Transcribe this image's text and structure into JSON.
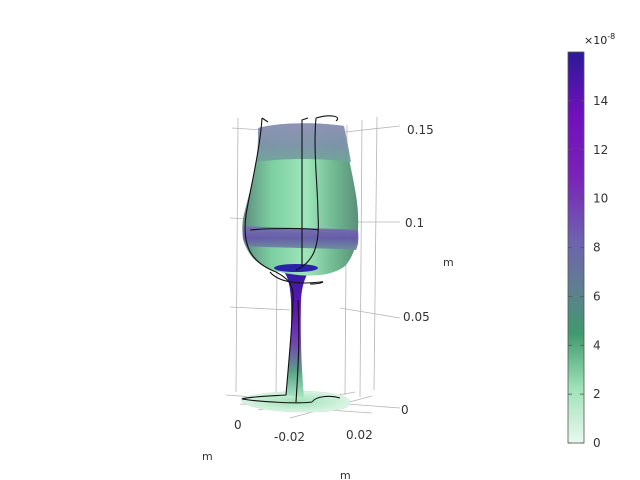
{
  "chart_data": {
    "type": "3d-surface",
    "axes": {
      "z": {
        "unit": "m",
        "ticks": [
          "0",
          "0.05",
          "0.1",
          "0.15"
        ],
        "range": [
          0,
          0.16
        ]
      },
      "x": {
        "unit": "m",
        "ticks": [
          "-0.02",
          "0.02"
        ]
      },
      "y": {
        "unit": "m",
        "ticks": [
          "0"
        ]
      }
    },
    "colorbar": {
      "multiplier": "×10",
      "exponent": "-8",
      "min": 0,
      "max": 16,
      "ticks": [
        "0",
        "2",
        "4",
        "6",
        "8",
        "10",
        "12",
        "14"
      ],
      "colormap": [
        "#eaf8ee",
        "#9ee2b8",
        "#3f9a6e",
        "#617d92",
        "#6f61b0",
        "#7a22b8",
        "#7010bb",
        "#2c1a96"
      ]
    },
    "grid": true
  }
}
